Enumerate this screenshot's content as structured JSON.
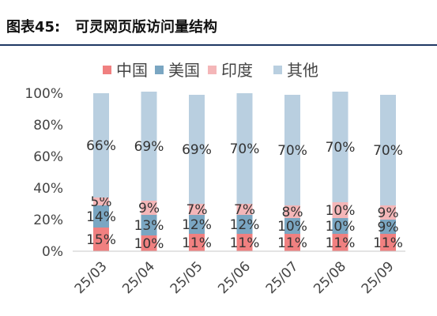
{
  "header": {
    "title": "图表45:   可灵网页版访问量结构"
  },
  "chart_data": {
    "type": "bar",
    "stacked": true,
    "categories": [
      "25/03",
      "25/04",
      "25/05",
      "25/06",
      "25/07",
      "25/08",
      "25/09"
    ],
    "series": [
      {
        "name": "中国",
        "color": "#f08080",
        "values": [
          15,
          10,
          11,
          11,
          11,
          11,
          11
        ],
        "labels": [
          "15%",
          "10%",
          "11%",
          "11%",
          "11%",
          "11%",
          "11%"
        ]
      },
      {
        "name": "美国",
        "color": "#7aa6c2",
        "values": [
          14,
          13,
          12,
          12,
          10,
          10,
          9
        ],
        "labels": [
          "14%",
          "13%",
          "12%",
          "12%",
          "10%",
          "10%",
          "9%"
        ]
      },
      {
        "name": "印度",
        "color": "#f4b6b8",
        "values": [
          5,
          9,
          7,
          7,
          8,
          10,
          9
        ],
        "labels": [
          "5%",
          "9%",
          "7%",
          "7%",
          "8%",
          "10%",
          "9%"
        ]
      },
      {
        "name": "其他",
        "color": "#b9cfe0",
        "values": [
          66,
          69,
          69,
          70,
          70,
          70,
          70
        ],
        "labels": [
          "66%",
          "69%",
          "69%",
          "70%",
          "70%",
          "70%",
          "70%"
        ]
      }
    ],
    "ylim": [
      0,
      100
    ],
    "yticks": [
      "0%",
      "20%",
      "40%",
      "60%",
      "80%",
      "100%"
    ],
    "legend_position": "top",
    "grid": false,
    "xlabel": "",
    "ylabel": ""
  }
}
